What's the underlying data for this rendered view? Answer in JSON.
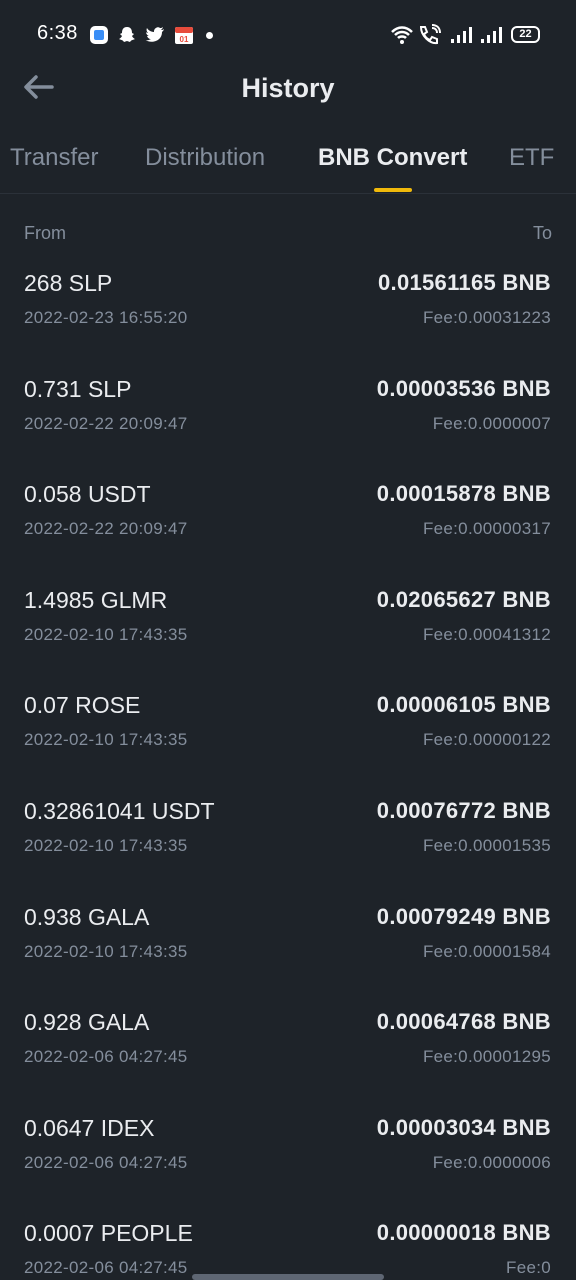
{
  "status_bar": {
    "time": "6:38",
    "battery": "22",
    "icons": [
      "app-icon",
      "snapchat-icon",
      "twitter-icon",
      "calendar-icon",
      "notification-dot",
      "wifi-icon",
      "call-icon",
      "signal-icon",
      "signal-icon",
      "battery-icon"
    ]
  },
  "header": {
    "title": "History",
    "back_icon": "arrow-left-icon"
  },
  "tabs": [
    {
      "label": "Transfer",
      "active": false
    },
    {
      "label": "Distribution",
      "active": false
    },
    {
      "label": "BNB Convert",
      "active": true
    },
    {
      "label": "ETF",
      "active": false
    }
  ],
  "columns": {
    "from": "From",
    "to": "To"
  },
  "conversions": [
    {
      "from": "268 SLP",
      "date": "2022-02-23 16:55:20",
      "to": "0.01561165 BNB",
      "fee": "Fee:0.00031223"
    },
    {
      "from": "0.731 SLP",
      "date": "2022-02-22 20:09:47",
      "to": "0.00003536 BNB",
      "fee": "Fee:0.0000007"
    },
    {
      "from": "0.058 USDT",
      "date": "2022-02-22 20:09:47",
      "to": "0.00015878 BNB",
      "fee": "Fee:0.00000317"
    },
    {
      "from": "1.4985 GLMR",
      "date": "2022-02-10 17:43:35",
      "to": "0.02065627 BNB",
      "fee": "Fee:0.00041312"
    },
    {
      "from": "0.07 ROSE",
      "date": "2022-02-10 17:43:35",
      "to": "0.00006105 BNB",
      "fee": "Fee:0.00000122"
    },
    {
      "from": "0.32861041 USDT",
      "date": "2022-02-10 17:43:35",
      "to": "0.00076772 BNB",
      "fee": "Fee:0.00001535"
    },
    {
      "from": "0.938 GALA",
      "date": "2022-02-10 17:43:35",
      "to": "0.00079249 BNB",
      "fee": "Fee:0.00001584"
    },
    {
      "from": "0.928 GALA",
      "date": "2022-02-06 04:27:45",
      "to": "0.00064768 BNB",
      "fee": "Fee:0.00001295"
    },
    {
      "from": "0.0647 IDEX",
      "date": "2022-02-06 04:27:45",
      "to": "0.00003034 BNB",
      "fee": "Fee:0.0000006"
    },
    {
      "from": "0.0007 PEOPLE",
      "date": "2022-02-06 04:27:45",
      "to": "0.00000018 BNB",
      "fee": "Fee:0"
    }
  ],
  "colors": {
    "background": "#1e2329",
    "primary_text": "#eaecef",
    "secondary_text": "#848e9c",
    "accent": "#f0b90b"
  }
}
